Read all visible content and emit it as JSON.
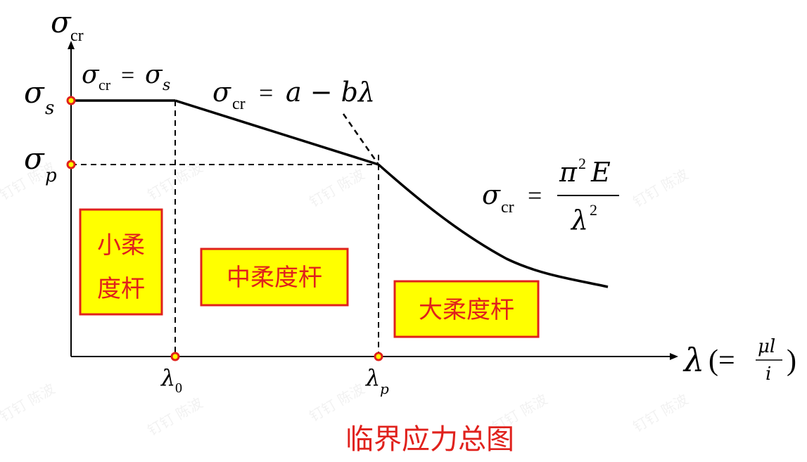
{
  "axes": {
    "y_symbol": "σ",
    "y_subscript": "cr",
    "x_symbol": "λ",
    "x_def_open": "(=",
    "x_def_num": "μl",
    "x_def_den": "i",
    "x_def_close": ")"
  },
  "y_ticks": [
    {
      "symbol": "σ",
      "subscript": "s"
    },
    {
      "symbol": "σ",
      "subscript": "p"
    }
  ],
  "x_ticks": [
    {
      "symbol": "λ",
      "subscript": "0"
    },
    {
      "symbol": "λ",
      "subscript": "p"
    }
  ],
  "formulas": {
    "plateau": {
      "lhs": "σ",
      "lhs_sub": "cr",
      "eq": "=",
      "rhs": "σ",
      "rhs_sub": "s"
    },
    "linear": {
      "lhs": "σ",
      "lhs_sub": "cr",
      "eq": "=",
      "rhs": "a − bλ"
    },
    "euler": {
      "lhs": "σ",
      "lhs_sub": "cr",
      "eq": "=",
      "num": "π",
      "num_sup": "2",
      "num_tail": "E",
      "den": "λ",
      "den_sup": "2"
    }
  },
  "zones": [
    {
      "line1": "小柔",
      "line2": "度杆"
    },
    {
      "line1": "中柔度杆"
    },
    {
      "line1": "大柔度杆"
    }
  ],
  "caption": "临界应力总图",
  "watermark": "钉钉 陈波",
  "colors": {
    "accent": "#e0211c",
    "zone_fill": "#ffff00",
    "marker_fill": "#ffff00",
    "curve": "#000000"
  }
}
